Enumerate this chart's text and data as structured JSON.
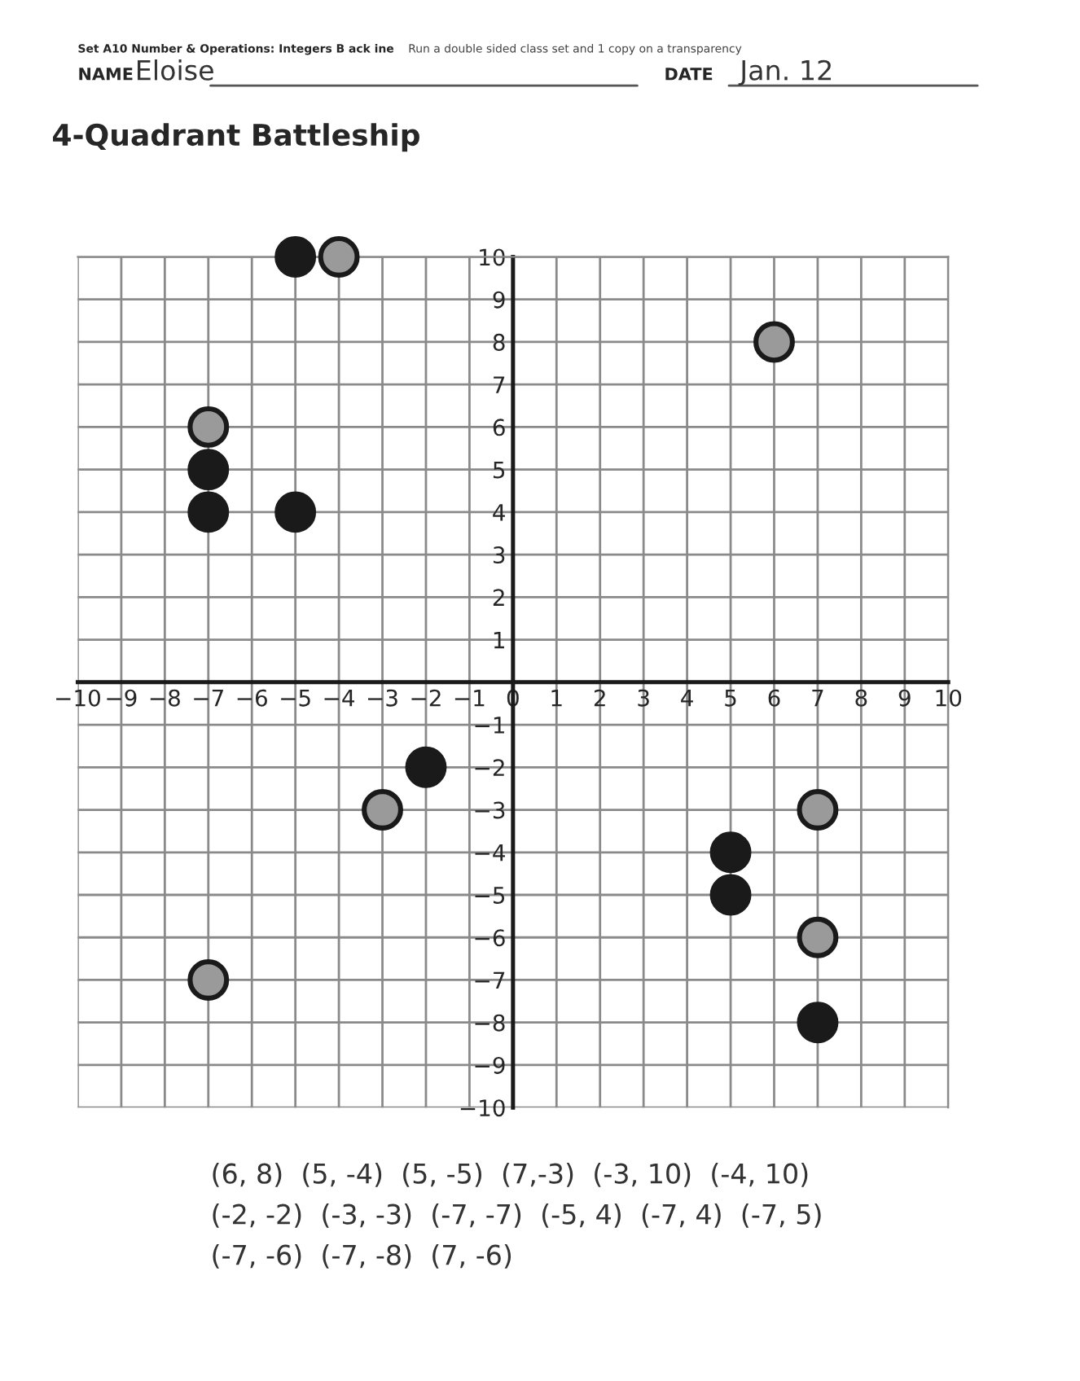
{
  "chart_data": {
    "type": "scatter",
    "title": "4-Quadrant Battleship",
    "annotations": [
      "Set A10 Number & Operations: Integers B ack ine",
      "Run a double sided class set and 1 copy on a transparency",
      "NAME",
      "Eloise",
      "DATE",
      "Jan. 12",
      "(6, 8)  (5, -4)  (5, -5)  (7,-3)  (-3, 10)  (-4, 10)\n(-2, -2)  (-3, -3)  (-7, -7)  (-5, 4)  (-7, 4)  (-7, 5)\n(-7, -6)  (-7, -8)  (7, -6)"
    ],
    "series": [
      {
        "color": "#1a1a1a",
        "x": [
          -5,
          -7,
          -7,
          -5,
          -2,
          5,
          5,
          7
        ],
        "values": [
          10,
          5,
          4,
          4,
          -2,
          -4,
          -5,
          -8
        ]
      },
      {
        "color": "#9a9a9a",
        "x": [
          -4,
          -7,
          6,
          -3,
          -7,
          7,
          7
        ],
        "values": [
          10,
          6,
          8,
          -3,
          -7,
          -3,
          -6
        ]
      }
    ],
    "xlim": [
      -10,
      10
    ],
    "ylim": [
      -10,
      10
    ],
    "xticks": [
      -10,
      -9,
      -8,
      -7,
      -6,
      -5,
      -4,
      -3,
      -2,
      -1,
      0,
      1,
      2,
      3,
      4,
      5,
      6,
      7,
      8,
      9,
      10
    ],
    "yticks": [
      -10,
      -9,
      -8,
      -7,
      -6,
      -5,
      -4,
      -3,
      -2,
      -1,
      {
        "value": 0,
        "label": null
      },
      1,
      2,
      3,
      4,
      5,
      6,
      7,
      8,
      9,
      10
    ],
    "grid": true,
    "marker": "circle",
    "legend": false
  }
}
